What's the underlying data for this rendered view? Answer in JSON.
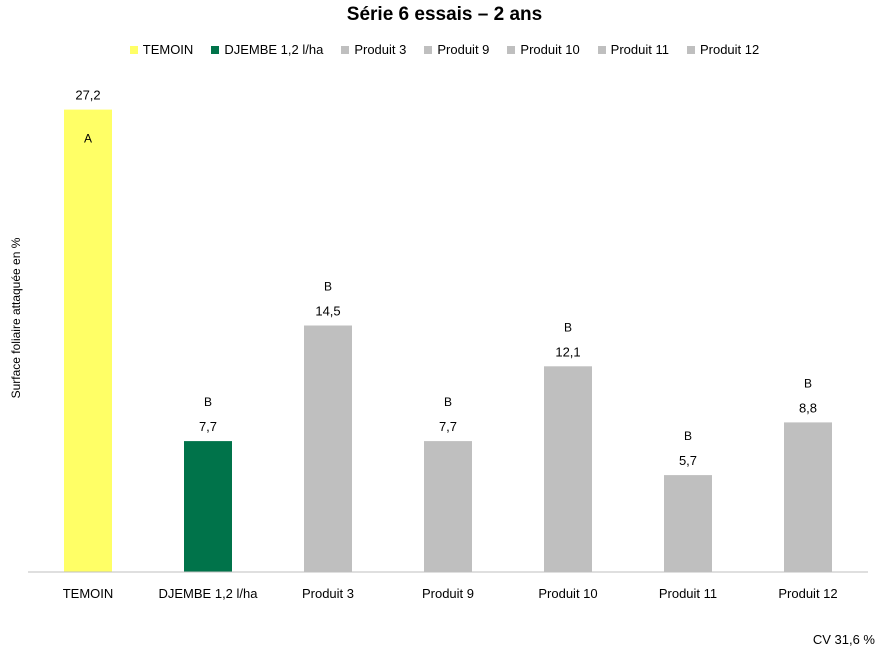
{
  "chart_data": {
    "type": "bar",
    "title": "Série 6 essais – 2 ans",
    "ylabel": "Surface foliaire attaquée en %",
    "xlabel": "",
    "ylim": [
      0,
      30
    ],
    "grid": false,
    "legend_position": "top",
    "categories": [
      "TEMOIN",
      "DJEMBE 1,2 l/ha",
      "Produit 3",
      "Produit 9",
      "Produit 10",
      "Produit 11",
      "Produit 12"
    ],
    "values": [
      27.2,
      7.7,
      14.5,
      7.7,
      12.1,
      5.7,
      8.8
    ],
    "value_labels": [
      "27,2",
      "7,7",
      "14,5",
      "7,7",
      "12,1",
      "5,7",
      "8,8"
    ],
    "group_letters": [
      "A",
      "B",
      "B",
      "B",
      "B",
      "B",
      "B"
    ],
    "colors": [
      "#FFFF66",
      "#00734A",
      "#BFBFBF",
      "#BFBFBF",
      "#BFBFBF",
      "#BFBFBF",
      "#BFBFBF"
    ]
  },
  "footer": {
    "cv": "CV 31,6 %"
  }
}
